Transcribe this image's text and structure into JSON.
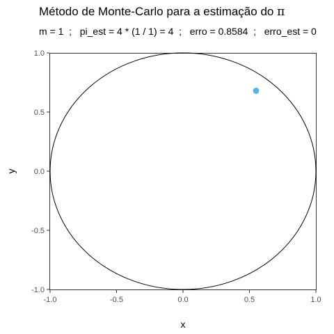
{
  "chart_data": {
    "type": "scatter",
    "title_text": "Método de Monte-Carlo para a estimação do ",
    "title_symbol": "π",
    "subtitle": "m = 1  ;   pi_est = 4 * (1 / 1) = 4  ;   erro = 0.8584  ;   erro_est = 0",
    "xlabel": "x",
    "ylabel": "y",
    "xlim": [
      -1.0,
      1.0
    ],
    "ylim": [
      -1.0,
      1.0
    ],
    "xticks": [
      -1.0,
      -0.5,
      0.0,
      0.5,
      1.0
    ],
    "yticks": [
      -1.0,
      -0.5,
      0.0,
      0.5,
      1.0
    ],
    "xtick_labels": [
      "-1.0",
      "-0.5",
      "0.0",
      "0.5",
      "1.0"
    ],
    "ytick_labels": [
      "-1.0",
      "-0.5",
      "0.0",
      "0.5",
      "1.0"
    ],
    "circle": {
      "center": [
        0,
        0
      ],
      "radius": 1.0
    },
    "points": [
      {
        "x": 0.55,
        "y": 0.68
      }
    ],
    "point_color": "#56B4E9",
    "grid": false
  }
}
